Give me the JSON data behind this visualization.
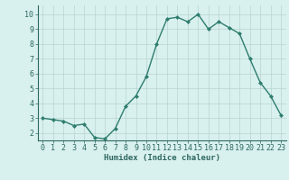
{
  "x": [
    0,
    1,
    2,
    3,
    4,
    5,
    6,
    7,
    8,
    9,
    10,
    11,
    12,
    13,
    14,
    15,
    16,
    17,
    18,
    19,
    20,
    21,
    22,
    23
  ],
  "y": [
    3.0,
    2.9,
    2.8,
    2.5,
    2.6,
    1.7,
    1.6,
    2.3,
    3.8,
    4.5,
    5.8,
    8.0,
    9.7,
    9.8,
    9.5,
    10.0,
    9.0,
    9.5,
    9.1,
    8.7,
    7.0,
    5.4,
    4.5,
    3.2
  ],
  "line_color": "#2e7d6e",
  "marker": "D",
  "marker_size": 2.0,
  "linewidth": 1.0,
  "bg_color": "#d8f0ee",
  "grid_color": "#b8d4d0",
  "xlabel": "Humidex (Indice chaleur)",
  "ylim": [
    1.5,
    10.6
  ],
  "xlim": [
    -0.5,
    23.5
  ],
  "yticks": [
    2,
    3,
    4,
    5,
    6,
    7,
    8,
    9,
    10
  ],
  "xticks": [
    0,
    1,
    2,
    3,
    4,
    5,
    6,
    7,
    8,
    9,
    10,
    11,
    12,
    13,
    14,
    15,
    16,
    17,
    18,
    19,
    20,
    21,
    22,
    23
  ],
  "xlabel_fontsize": 6.5,
  "tick_fontsize": 6.0,
  "axis_color": "#2e6860",
  "spine_color": "#2e6860"
}
